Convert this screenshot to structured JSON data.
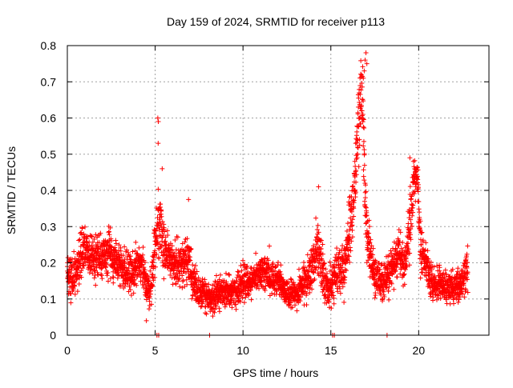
{
  "chart_data": {
    "type": "scatter",
    "title": "Day 159 of 2024, SRMTID for receiver p113",
    "xlabel": "GPS time / hours",
    "ylabel": "SRMTID / TECUs",
    "xlim": [
      0,
      24
    ],
    "ylim": [
      0,
      0.8
    ],
    "x_ticks": [
      0,
      5,
      10,
      15,
      20
    ],
    "x_tick_labels": [
      "0",
      "5",
      "10",
      "15",
      "20"
    ],
    "y_ticks": [
      0,
      0.1,
      0.2,
      0.3,
      0.4,
      0.5,
      0.6,
      0.7,
      0.8
    ],
    "y_tick_labels": [
      "0",
      "0.1",
      "0.2",
      "0.3",
      "0.4",
      "0.5",
      "0.6",
      "0.7",
      "0.8"
    ],
    "grid": true,
    "marker": "+",
    "marker_color": "#ff0000",
    "series": [
      {
        "name": "SRMTID",
        "trend": {
          "x": [
            0.0,
            0.3,
            0.5,
            0.8,
            1.0,
            1.3,
            1.6,
            2.0,
            2.4,
            2.8,
            3.2,
            3.6,
            3.9,
            4.2,
            4.5,
            4.7,
            4.9,
            5.1,
            5.3,
            5.5,
            5.8,
            6.1,
            6.4,
            6.7,
            7.0,
            7.3,
            7.6,
            7.9,
            8.2,
            8.5,
            8.8,
            9.2,
            9.6,
            10.0,
            10.4,
            10.8,
            11.2,
            11.6,
            12.0,
            12.4,
            12.8,
            13.2,
            13.5,
            13.8,
            14.0,
            14.2,
            14.4,
            14.6,
            14.9,
            15.2,
            15.5,
            15.8,
            16.0,
            16.2,
            16.4,
            16.6,
            16.8,
            17.0,
            17.2,
            17.4,
            17.7,
            18.0,
            18.3,
            18.6,
            18.9,
            19.2,
            19.5,
            19.7,
            19.9,
            20.1,
            20.4,
            20.7,
            21.0,
            21.4,
            21.8,
            22.2,
            22.5,
            22.8
          ],
          "center": [
            0.17,
            0.15,
            0.18,
            0.22,
            0.24,
            0.22,
            0.21,
            0.22,
            0.23,
            0.2,
            0.18,
            0.17,
            0.18,
            0.2,
            0.14,
            0.12,
            0.2,
            0.29,
            0.3,
            0.24,
            0.22,
            0.19,
            0.2,
            0.2,
            0.18,
            0.13,
            0.12,
            0.11,
            0.1,
            0.11,
            0.13,
            0.12,
            0.12,
            0.14,
            0.15,
            0.17,
            0.18,
            0.16,
            0.15,
            0.12,
            0.11,
            0.12,
            0.15,
            0.16,
            0.2,
            0.26,
            0.22,
            0.15,
            0.12,
            0.16,
            0.18,
            0.19,
            0.27,
            0.35,
            0.45,
            0.6,
            0.66,
            0.3,
            0.24,
            0.18,
            0.15,
            0.15,
            0.17,
            0.2,
            0.22,
            0.2,
            0.3,
            0.42,
            0.44,
            0.25,
            0.2,
            0.15,
            0.14,
            0.14,
            0.13,
            0.14,
            0.15,
            0.2
          ],
          "spread": [
            0.05,
            0.06,
            0.06,
            0.07,
            0.06,
            0.06,
            0.06,
            0.06,
            0.06,
            0.06,
            0.06,
            0.06,
            0.06,
            0.06,
            0.05,
            0.05,
            0.07,
            0.1,
            0.08,
            0.07,
            0.06,
            0.06,
            0.06,
            0.07,
            0.06,
            0.05,
            0.04,
            0.04,
            0.04,
            0.04,
            0.04,
            0.04,
            0.04,
            0.05,
            0.04,
            0.04,
            0.05,
            0.05,
            0.04,
            0.04,
            0.04,
            0.04,
            0.05,
            0.06,
            0.08,
            0.08,
            0.07,
            0.05,
            0.05,
            0.06,
            0.06,
            0.07,
            0.09,
            0.1,
            0.1,
            0.12,
            0.12,
            0.1,
            0.07,
            0.06,
            0.05,
            0.05,
            0.05,
            0.06,
            0.06,
            0.06,
            0.08,
            0.06,
            0.06,
            0.07,
            0.06,
            0.05,
            0.04,
            0.04,
            0.04,
            0.04,
            0.05,
            0.06
          ],
          "samples_per_hour": 150
        },
        "outliers": [
          [
            5.15,
            0.6
          ],
          [
            5.18,
            0.59
          ],
          [
            5.17,
            0.53
          ],
          [
            5.4,
            0.46
          ],
          [
            17.0,
            0.78
          ],
          [
            16.95,
            0.76
          ],
          [
            17.05,
            0.75
          ],
          [
            16.9,
            0.73
          ],
          [
            16.85,
            0.71
          ],
          [
            6.9,
            0.375
          ],
          [
            5.1,
            0.0
          ],
          [
            5.2,
            0.0
          ],
          [
            8.1,
            0.0
          ],
          [
            15.1,
            0.0
          ],
          [
            15.2,
            0.0
          ],
          [
            18.2,
            0.0
          ],
          [
            14.3,
            0.41
          ],
          [
            19.5,
            0.49
          ],
          [
            19.7,
            0.48
          ],
          [
            4.5,
            0.04
          ]
        ]
      }
    ]
  }
}
